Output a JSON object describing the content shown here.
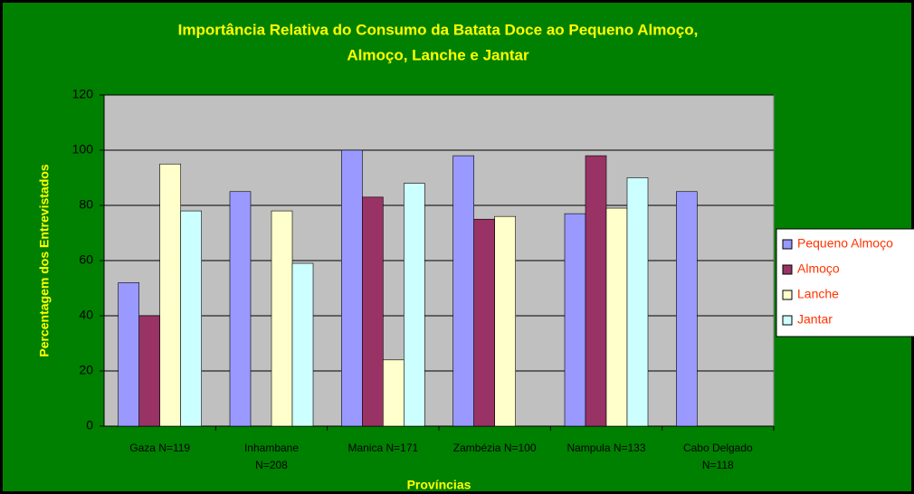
{
  "chart_data": {
    "type": "bar",
    "title": [
      "Importância Relativa do Consumo da Batata Doce ao Pequeno Almoço,",
      "Almoço, Lanche e Jantar"
    ],
    "ylabel": "Percentagem dos Entrevistados",
    "xlabel": "Províncias",
    "categories": [
      "Gaza N=119",
      "Inhambane N=208",
      "Manica N=171",
      "Zambézia N=100",
      "Nampula N=133",
      "Cabo Delgado N=118"
    ],
    "series": [
      {
        "name": "Pequeno Almoço",
        "color": "#9999ff",
        "values": [
          52,
          85,
          100,
          98,
          77,
          85
        ]
      },
      {
        "name": "Almoço",
        "color": "#993366",
        "values": [
          40,
          null,
          83,
          75,
          98,
          null
        ]
      },
      {
        "name": "Lanche",
        "color": "#ffffcc",
        "values": [
          95,
          78,
          24,
          76,
          79,
          null
        ]
      },
      {
        "name": "Jantar",
        "color": "#ccffff",
        "values": [
          78,
          59,
          88,
          null,
          90,
          null
        ]
      }
    ],
    "ylim": [
      0,
      120
    ],
    "yticks": [
      0,
      20,
      40,
      60,
      80,
      100,
      120
    ],
    "grid": true,
    "legend": "right"
  }
}
